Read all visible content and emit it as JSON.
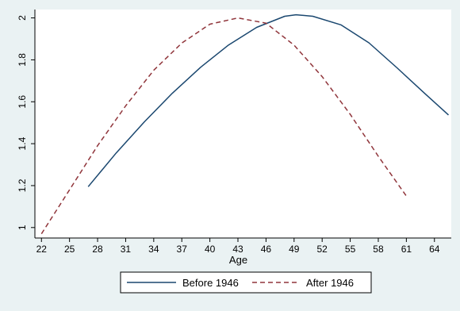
{
  "chart_data": {
    "type": "line",
    "title": "",
    "xlabel": "Age",
    "ylabel": "",
    "xlim": [
      21.3,
      65.8
    ],
    "ylim": [
      0.95,
      2.04
    ],
    "x_ticks": [
      22,
      25,
      28,
      31,
      34,
      37,
      40,
      43,
      46,
      49,
      52,
      55,
      58,
      61,
      64
    ],
    "y_ticks": [
      1,
      1.2,
      1.4,
      1.6,
      1.8,
      2
    ],
    "y_tick_labels": [
      "1",
      "1.2",
      "1.4",
      "1.6",
      "1.8",
      "2"
    ],
    "grid": false,
    "legend_position": "bottom",
    "colors": {
      "outer_background": "#eaf2f3",
      "plot_background": "#ffffff"
    },
    "series": [
      {
        "name": "Before 1946",
        "color": "#1a476f",
        "dash": "solid",
        "x": [
          27,
          30,
          33,
          36,
          39,
          42,
          45,
          48,
          49.2,
          51,
          54,
          57,
          60,
          63,
          65.5
        ],
        "y": [
          1.195,
          1.356,
          1.504,
          1.641,
          1.764,
          1.871,
          1.955,
          2.008,
          2.015,
          2.008,
          1.967,
          1.881,
          1.762,
          1.638,
          1.537
        ]
      },
      {
        "name": "After 1946",
        "color": "#90353b",
        "dash": "dashed",
        "x": [
          22,
          25,
          28,
          31,
          34,
          37,
          40,
          43,
          46,
          49,
          52,
          55,
          58,
          61
        ],
        "y": [
          0.97,
          1.18,
          1.39,
          1.58,
          1.75,
          1.88,
          1.97,
          2.0,
          1.975,
          1.87,
          1.72,
          1.54,
          1.34,
          1.15
        ]
      }
    ]
  }
}
